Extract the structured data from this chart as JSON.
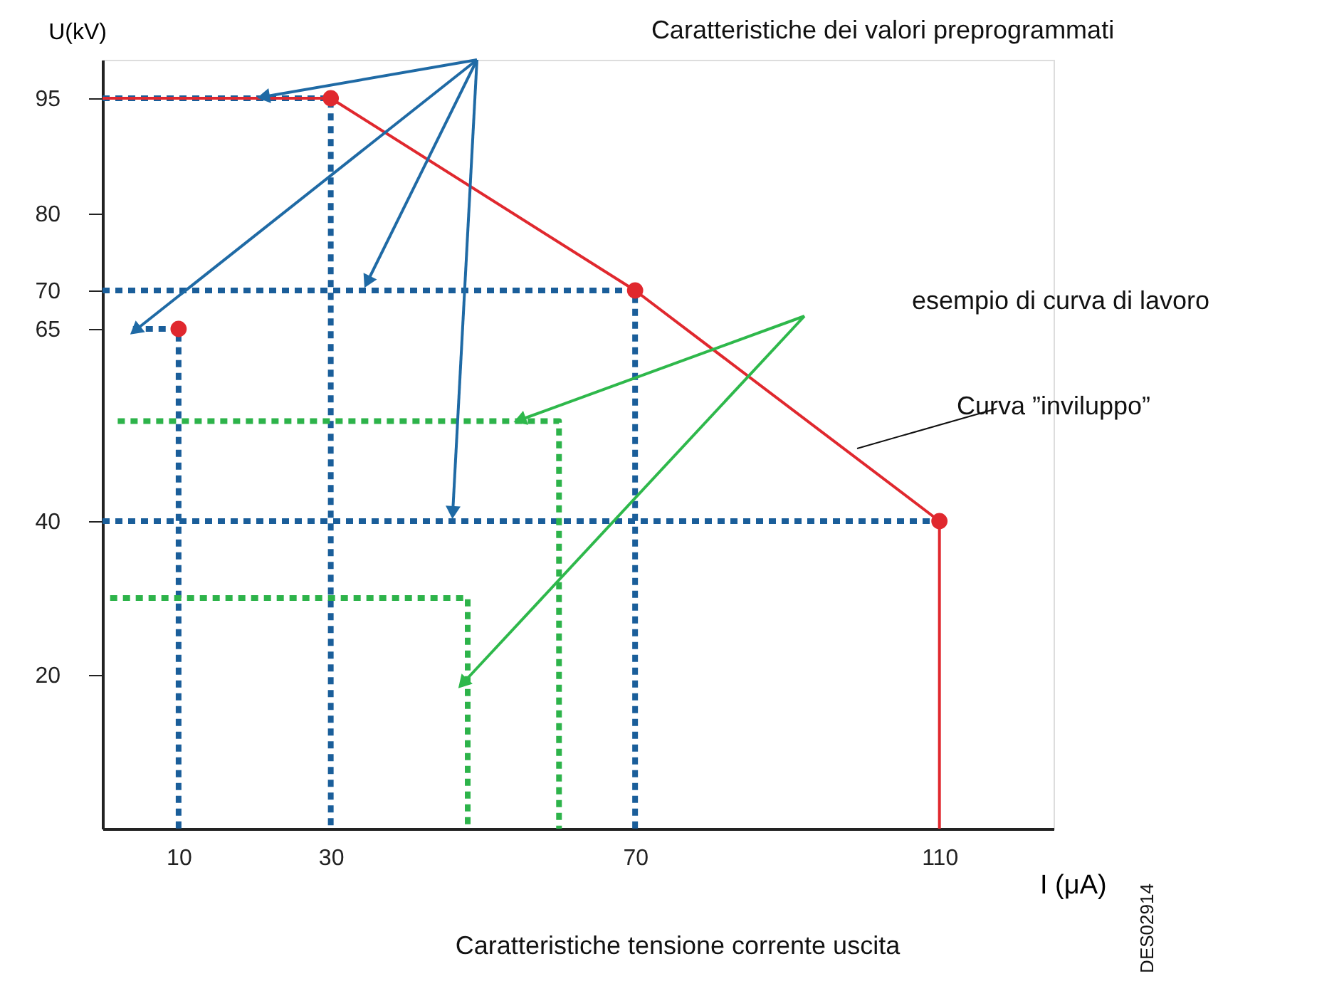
{
  "chart_data": {
    "type": "line",
    "xlabel": "I (μA)",
    "ylabel": "U(kV)",
    "xlim": [
      0,
      125
    ],
    "ylim": [
      0,
      100
    ],
    "xticks": [
      10,
      30,
      70,
      110
    ],
    "yticks": [
      20,
      40,
      65,
      70,
      80,
      95
    ],
    "series": [
      {
        "type": "line",
        "color": "#1a5e9a",
        "line_style": "dashed",
        "marker": "none",
        "x": [
          0,
          30,
          30
        ],
        "values": [
          95,
          95,
          0
        ]
      },
      {
        "type": "line",
        "color": "#1a5e9a",
        "line_style": "dashed",
        "marker": "none",
        "x": [
          4,
          10,
          10
        ],
        "values": [
          65,
          65,
          0
        ]
      },
      {
        "type": "line",
        "color": "#1a5e9a",
        "line_style": "dashed",
        "marker": "none",
        "x": [
          0,
          70,
          70
        ],
        "values": [
          70,
          70,
          0
        ]
      },
      {
        "type": "line",
        "color": "#1a5e9a",
        "line_style": "dashed",
        "marker": "none",
        "x": [
          0,
          110
        ],
        "values": [
          40,
          40
        ]
      },
      {
        "type": "line",
        "color": "#2db34a",
        "line_style": "dashed",
        "marker": "none",
        "x": [
          2,
          60,
          60
        ],
        "values": [
          53,
          53,
          0
        ]
      },
      {
        "type": "line",
        "color": "#2db34a",
        "line_style": "dashed",
        "marker": "none",
        "x": [
          1,
          48,
          48
        ],
        "values": [
          30,
          30,
          0
        ]
      },
      {
        "type": "line",
        "color": "#e0282e",
        "line_style": "solid",
        "marker": "none",
        "x": [
          0,
          30,
          70,
          110,
          110
        ],
        "values": [
          95,
          95,
          70,
          40,
          0
        ]
      },
      {
        "type": "scatter",
        "color": "#e0282e",
        "marker": "circle",
        "x": [
          10,
          30,
          70,
          110
        ],
        "values": [
          65,
          95,
          70,
          40
        ]
      }
    ],
    "annotations": [
      "Caratteristiche dei valori preprogrammati",
      "esempio di curva di lavoro",
      "Curva ”inviluppo”",
      "Caratteristiche tensione corrente uscita",
      "DES02914"
    ]
  }
}
